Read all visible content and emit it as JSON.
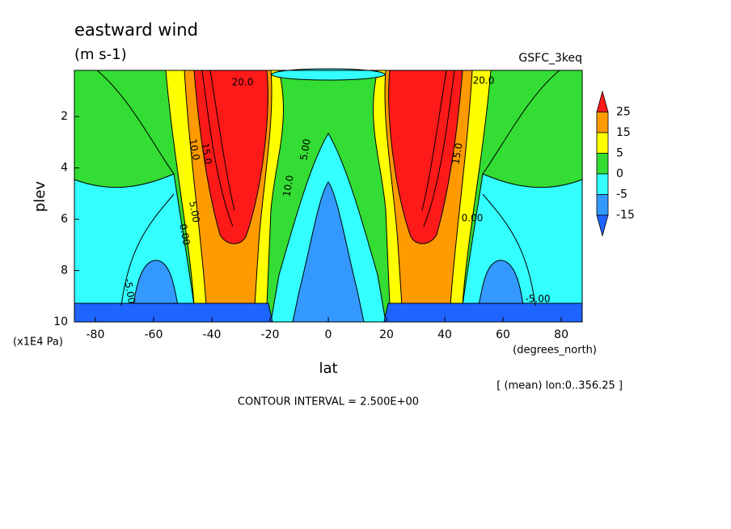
{
  "chart_data": {
    "type": "contour",
    "title": "eastward wind",
    "subtitle": "(m s-1)",
    "source_label": "GSFC_3keq",
    "x_label": "lat",
    "y_label": "plev",
    "x_unit": "(degrees_north)",
    "y_unit": "(x1E4 Pa)",
    "note": "[ (mean) lon:0..356.25 ]",
    "footer": "CONTOUR INTERVAL = 2.500E+00",
    "xlim": [
      -87.2,
      87.2
    ],
    "ylim": [
      10,
      0.2
    ],
    "xticks": [
      -80,
      -60,
      -40,
      -20,
      0,
      20,
      40,
      60,
      80
    ],
    "yticks": [
      2,
      4,
      6,
      8,
      10
    ],
    "levels": [
      25,
      15,
      5,
      0,
      -5,
      -15
    ],
    "colors": [
      "#ff1a1a",
      "#ff9a00",
      "#ffff00",
      "#33dd33",
      "#33ffff",
      "#3399ff",
      "#1e64ff"
    ],
    "contour_labels": [
      "20.0",
      "15.0",
      "10.0",
      "5.00",
      "0.00",
      "-5.00",
      "5.00",
      "10.0",
      "15.0",
      "20.0",
      "0.00",
      "-5.00"
    ]
  }
}
